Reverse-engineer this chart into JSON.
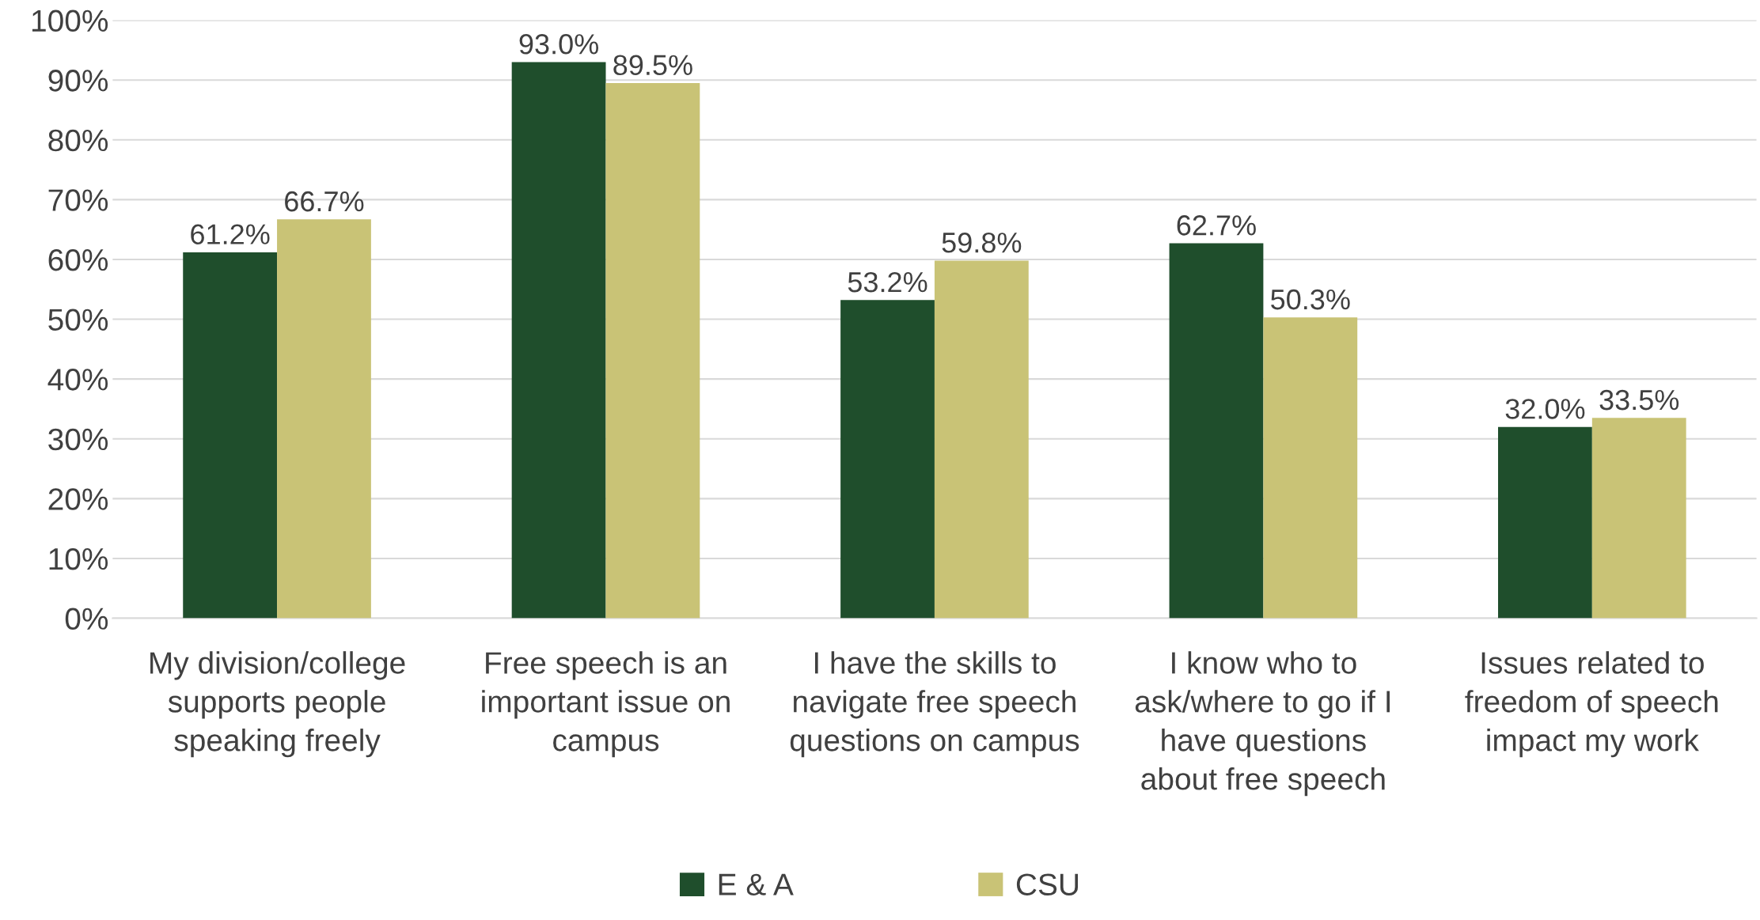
{
  "chart_data": {
    "type": "bar",
    "categories": [
      "My division/college\nsupports people\nspeaking freely",
      "Free speech is an\nimportant issue on\ncampus",
      "I have the skills to\nnavigate free speech\nquestions on campus",
      "I know who to\nask/where to go if I\nhave questions\nabout free speech",
      "Issues related to\nfreedom of speech\nimpact my work"
    ],
    "series": [
      {
        "name": "E & A",
        "color": "#1f4e2c",
        "values": [
          61.2,
          93.0,
          53.2,
          62.7,
          32.0
        ],
        "value_labels": [
          "61.2%",
          "93.0%",
          "53.2%",
          "62.7%",
          "32.0%"
        ]
      },
      {
        "name": "CSU",
        "color": "#c9c376",
        "values": [
          66.7,
          89.5,
          59.8,
          50.3,
          33.5
        ],
        "value_labels": [
          "66.7%",
          "89.5%",
          "59.8%",
          "50.3%",
          "33.5%"
        ]
      }
    ],
    "ylim": [
      0,
      100
    ],
    "yticks": [
      {
        "value": 0,
        "label": "0%"
      },
      {
        "value": 10,
        "label": "10%"
      },
      {
        "value": 20,
        "label": "20%"
      },
      {
        "value": 30,
        "label": "30%"
      },
      {
        "value": 40,
        "label": "40%"
      },
      {
        "value": 50,
        "label": "50%"
      },
      {
        "value": 60,
        "label": "60%"
      },
      {
        "value": 70,
        "label": "70%"
      },
      {
        "value": 80,
        "label": "80%"
      },
      {
        "value": 90,
        "label": "90%"
      },
      {
        "value": 100,
        "label": "100%"
      }
    ],
    "grid": "y",
    "legend": "bottom"
  }
}
